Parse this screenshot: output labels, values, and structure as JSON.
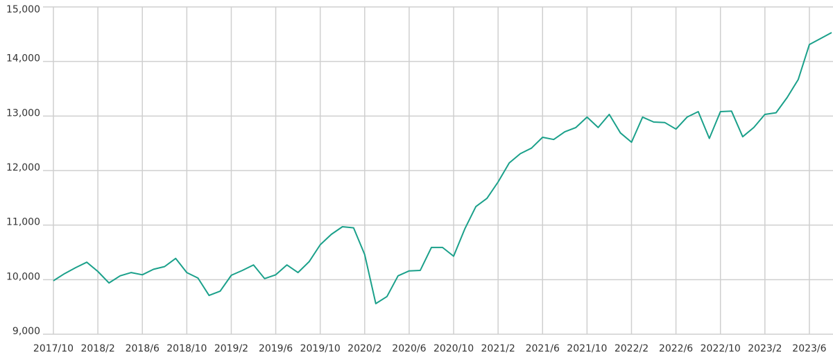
{
  "chart_data": {
    "type": "line",
    "categories": [
      "2017/10",
      null,
      null,
      null,
      "2018/2",
      null,
      null,
      null,
      "2018/6",
      null,
      null,
      null,
      "2018/10",
      null,
      null,
      null,
      "2019/2",
      null,
      null,
      null,
      "2019/6",
      null,
      null,
      null,
      "2019/10",
      null,
      null,
      null,
      "2020/2",
      null,
      null,
      null,
      "2020/6",
      null,
      null,
      null,
      "2020/10",
      null,
      null,
      null,
      "2021/2",
      null,
      null,
      null,
      "2021/6",
      null,
      null,
      null,
      "2021/10",
      null,
      null,
      null,
      "2022/2",
      null,
      null,
      null,
      "2022/6",
      null,
      null,
      null,
      "2022/10",
      null,
      null,
      null,
      "2023/2",
      null,
      null,
      null,
      "2023/6",
      null,
      null
    ],
    "series": [
      {
        "name": "value",
        "color": "#1aa08a",
        "values": [
          9980,
          10110,
          10220,
          10320,
          10150,
          9940,
          10070,
          10130,
          10090,
          10190,
          10240,
          10390,
          10130,
          10030,
          9710,
          9790,
          10080,
          10170,
          10270,
          10020,
          10090,
          10270,
          10130,
          10330,
          10640,
          10830,
          10970,
          10950,
          10460,
          9560,
          9690,
          10070,
          10160,
          10170,
          10590,
          10590,
          10430,
          10930,
          11340,
          11490,
          11790,
          12140,
          12310,
          12410,
          12610,
          12570,
          12710,
          12790,
          12980,
          12790,
          13030,
          12690,
          12520,
          12980,
          12890,
          12880,
          12760,
          12980,
          13080,
          12590,
          13080,
          13090,
          12620,
          12790,
          13030,
          13060,
          13340,
          13670,
          14310,
          14420,
          14530
        ]
      }
    ],
    "ylim": [
      9000,
      15000
    ],
    "yticks": [
      {
        "value": 9000,
        "label": "9,000"
      },
      {
        "value": 10000,
        "label": "10,000"
      },
      {
        "value": 11000,
        "label": "11,000"
      },
      {
        "value": 12000,
        "label": "12,000"
      },
      {
        "value": 13000,
        "label": "13,000"
      },
      {
        "value": 14000,
        "label": "14,000"
      },
      {
        "value": 15000,
        "label": "15,000"
      }
    ],
    "grid": true
  }
}
